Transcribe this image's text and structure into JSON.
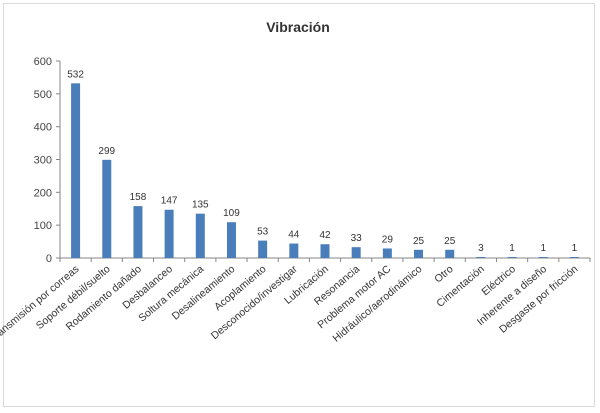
{
  "chart_data": {
    "type": "bar",
    "title": "Vibración",
    "categories": [
      "Transmisión por correas",
      "Soporte débil/suelto",
      "Rodamiento dañado",
      "Desbalanceo",
      "Soltura mecánica",
      "Desalineamiento",
      "Acoplamiento",
      "Desconocido/investigar",
      "Lubricación",
      "Resonancia",
      "Problema motor AC",
      "Hidráulico/aerodinámico",
      "Otro",
      "Cimentación",
      "Eléctrico",
      "Inherente a diseño",
      "Desgaste por fricción"
    ],
    "values": [
      532,
      299,
      158,
      147,
      135,
      109,
      53,
      44,
      42,
      33,
      29,
      25,
      25,
      3,
      1,
      1,
      1
    ],
    "ylim": [
      0,
      600
    ],
    "yticks": [
      0,
      100,
      200,
      300,
      400,
      500,
      600
    ],
    "xlabel": "",
    "ylabel": "",
    "grid": false,
    "legend": "none",
    "colors": {
      "bar": "#4a7ebb",
      "axis": "#868686"
    }
  }
}
